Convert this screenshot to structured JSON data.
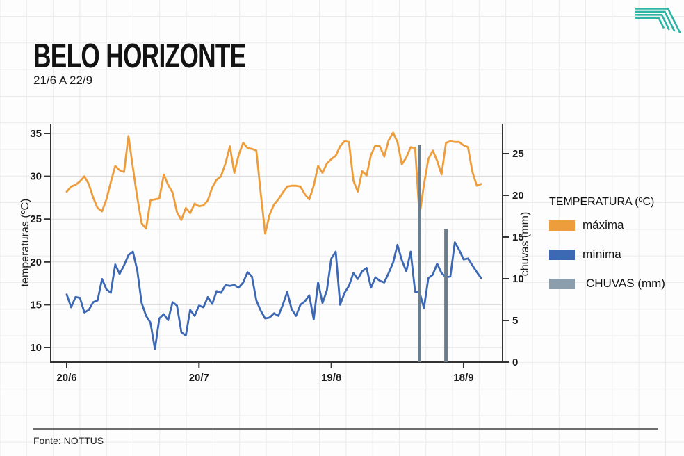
{
  "page": {
    "title": "BELO HORIZONTE",
    "subtitle": "21/6 A 22/9",
    "source": "Fonte: NOTTUS"
  },
  "legend": {
    "title": "TEMPERATURA (ºC)",
    "items": [
      {
        "label": "máxima",
        "color": "#EE9D3C"
      },
      {
        "label": "mínima",
        "color": "#3D68B3"
      },
      {
        "label": "CHUVAS (mm)",
        "color": "#8C9DAB"
      }
    ]
  },
  "chart_data": {
    "type": "line+bar",
    "title": "BELO HORIZONTE",
    "subtitle_period": "21/6 A 22/9",
    "x": {
      "start_date": "20/6",
      "end_date": "22/9",
      "tick_labels": [
        "20/6",
        "20/7",
        "19/8",
        "18/9"
      ],
      "tick_days": [
        0,
        30,
        60,
        90
      ]
    },
    "y_left": {
      "label": "temperaturas (ºC)",
      "ticks": [
        10,
        15,
        20,
        25,
        30,
        35
      ],
      "min": 8,
      "max": 36
    },
    "y_right": {
      "label": "chuvas (mm)",
      "ticks": [
        0,
        5,
        10,
        15,
        20,
        25
      ],
      "min": 0,
      "max": 28
    },
    "grid": "horizontal-only",
    "legend_position": "right",
    "series": [
      {
        "name": "máxima",
        "type": "line",
        "color": "#EE9D3C",
        "values": [
          28.2,
          28.8,
          29.0,
          29.4,
          30.0,
          29.1,
          27.5,
          26.3,
          25.9,
          27.3,
          29.3,
          31.2,
          30.7,
          30.5,
          34.7,
          31.0,
          27.5,
          24.5,
          23.9,
          27.2,
          27.3,
          27.4,
          30.2,
          29.0,
          28.1,
          25.8,
          24.9,
          26.3,
          25.7,
          26.8,
          26.5,
          26.6,
          27.2,
          28.7,
          29.6,
          30.0,
          31.5,
          33.5,
          30.4,
          32.5,
          33.9,
          33.3,
          33.2,
          33.0,
          28.0,
          23.3,
          25.5,
          26.7,
          27.3,
          28.1,
          28.8,
          28.9,
          28.9,
          28.8,
          27.9,
          27.3,
          28.9,
          31.2,
          30.4,
          31.5,
          32.0,
          32.4,
          33.5,
          34.1,
          34.0,
          29.5,
          28.2,
          30.6,
          30.1,
          32.5,
          33.6,
          33.5,
          32.3,
          34.2,
          35.1,
          34.0,
          31.4,
          32.2,
          33.4,
          33.3,
          25.4,
          29.0,
          32.0,
          33.0,
          31.8,
          30.2,
          33.9,
          34.1,
          34.0,
          34.0,
          33.6,
          33.4,
          30.5,
          28.9,
          29.1
        ]
      },
      {
        "name": "mínima",
        "type": "line",
        "color": "#3D68B3",
        "values": [
          16.2,
          14.7,
          15.9,
          15.8,
          14.1,
          14.4,
          15.3,
          15.5,
          18.0,
          16.8,
          16.4,
          19.7,
          18.6,
          19.6,
          20.8,
          21.2,
          19.0,
          15.2,
          13.7,
          12.9,
          9.8,
          13.4,
          13.9,
          13.2,
          15.3,
          14.9,
          11.8,
          11.4,
          14.4,
          13.7,
          14.9,
          14.7,
          15.9,
          15.1,
          16.6,
          16.4,
          17.3,
          17.2,
          17.3,
          17.0,
          17.6,
          18.8,
          18.3,
          15.5,
          14.3,
          13.4,
          13.5,
          14.0,
          13.7,
          15.0,
          16.5,
          14.5,
          13.7,
          15.0,
          15.4,
          16.1,
          13.3,
          17.6,
          15.2,
          16.7,
          20.4,
          21.2,
          15.0,
          16.4,
          17.2,
          18.7,
          18.0,
          18.9,
          19.3,
          17.0,
          18.2,
          17.8,
          17.6,
          18.7,
          19.9,
          22.0,
          20.2,
          18.9,
          21.2,
          16.5,
          16.5,
          14.6,
          18.1,
          18.5,
          19.8,
          18.7,
          18.2,
          18.3,
          22.3,
          21.4,
          20.3,
          20.4,
          19.6,
          18.8,
          18.1
        ]
      },
      {
        "name": "CHUVAS (mm)",
        "type": "bar",
        "color": "#6A7E8E",
        "bars": [
          {
            "day": 80,
            "mm": 26
          },
          {
            "day": 86,
            "mm": 16
          }
        ]
      }
    ]
  }
}
